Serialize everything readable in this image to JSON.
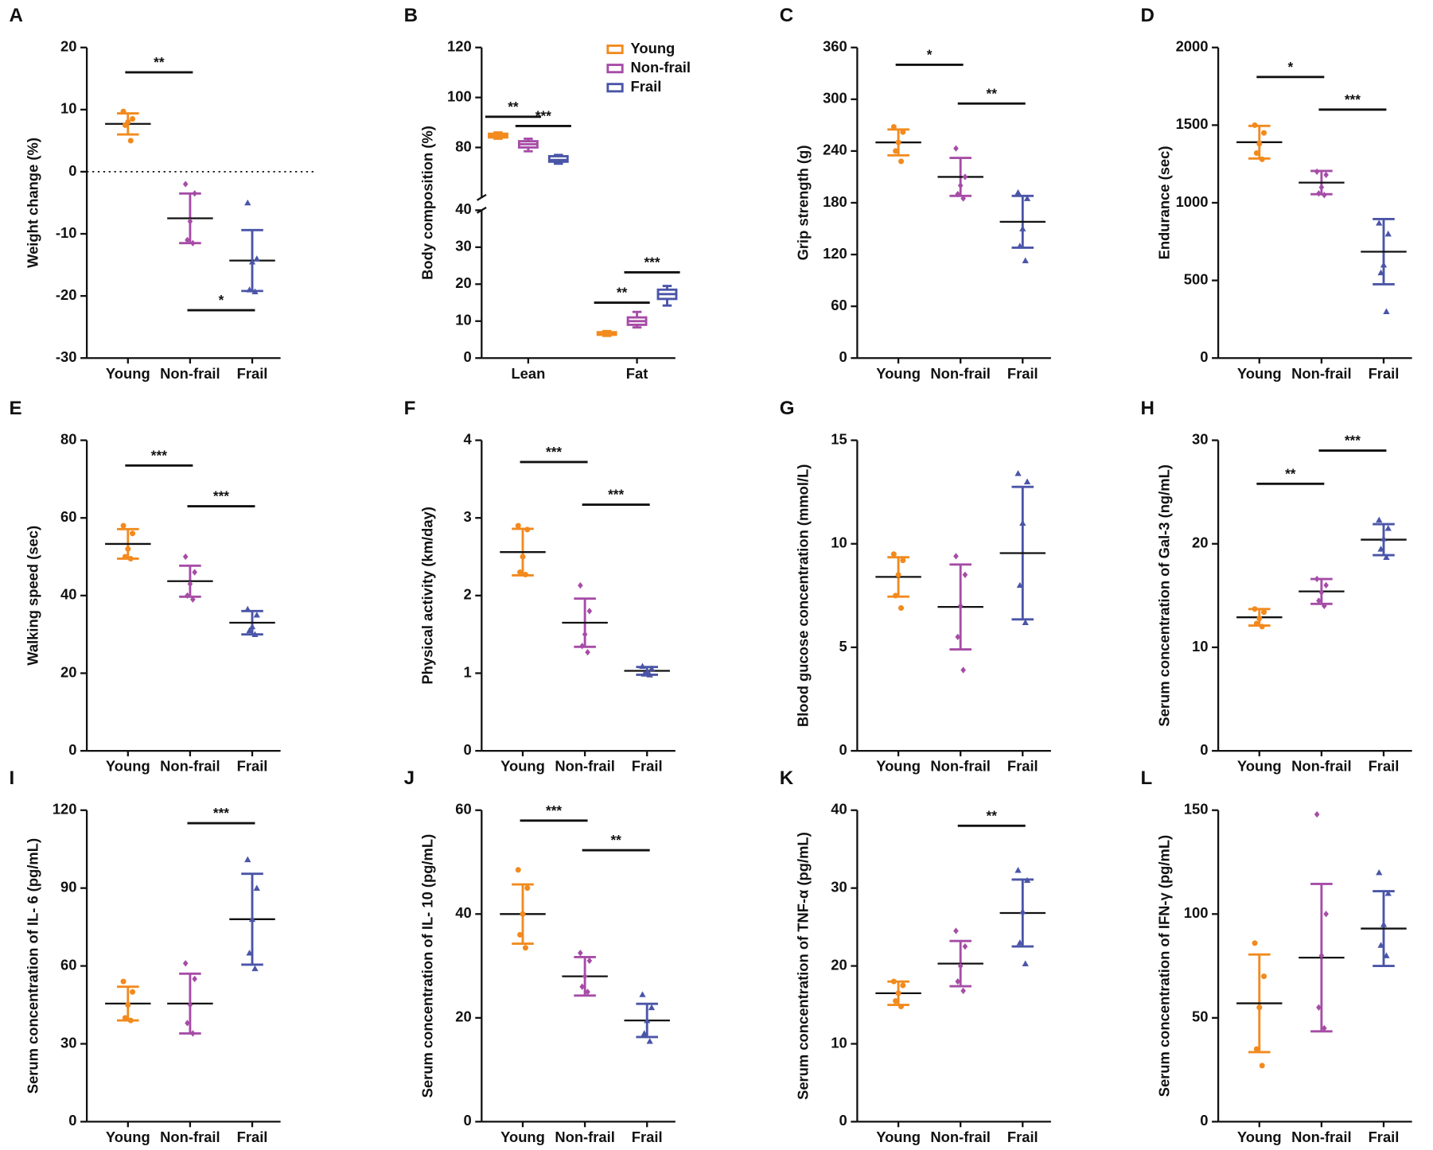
{
  "chart_data": [
    {
      "type": "scatter",
      "panel": "A",
      "y_label": "Weight change (%)",
      "categories": [
        "Young",
        "Non-frail",
        "Frail"
      ],
      "ylim": [
        -30,
        20
      ],
      "yticks": [
        -30,
        -20,
        -10,
        0,
        10,
        20
      ],
      "hline": 0,
      "series": [
        {
          "color": "#f28a1e",
          "marker": "circle",
          "mean": 7.7,
          "sd": 1.7,
          "points": [
            9.7,
            8.5,
            8,
            7.5,
            5
          ]
        },
        {
          "color": "#a64ca6",
          "marker": "diamond",
          "mean": -7.5,
          "sd": 4,
          "points": [
            -2,
            -3.5,
            -8,
            -11,
            -11.5
          ]
        },
        {
          "color": "#4a55a8",
          "marker": "triangle",
          "mean": -14.3,
          "sd": 4.9,
          "points": [
            -5,
            -14,
            -14.5,
            -19,
            -19.3
          ]
        }
      ],
      "significance": [
        {
          "label": "**",
          "from": 0,
          "to": 1,
          "y": 16
        },
        {
          "label": "*",
          "from": 1,
          "to": 2,
          "y": -22.3
        }
      ]
    },
    {
      "type": "box",
      "panel": "B",
      "y_label": "Body composition (%)",
      "categories": [
        "Lean",
        "Fat"
      ],
      "ylim": [
        0,
        120
      ],
      "axis_break": [
        40,
        60
      ],
      "yticks": [
        0,
        10,
        20,
        30,
        40,
        80,
        100,
        120
      ],
      "legend": "upper right",
      "series": [
        {
          "name": "Young",
          "color": "#f28a1e",
          "values": [
            {
              "min": 83.5,
              "q1": 84,
              "median": 84.8,
              "q3": 85.5,
              "max": 86
            },
            {
              "min": 6,
              "q1": 6.3,
              "median": 6.7,
              "q3": 7,
              "max": 7.3
            }
          ]
        },
        {
          "name": "Non-frail",
          "color": "#a64ca6",
          "values": [
            {
              "min": 78.5,
              "q1": 80,
              "median": 81.3,
              "q3": 82.5,
              "max": 83.5
            },
            {
              "min": 8.3,
              "q1": 9,
              "median": 10,
              "q3": 11,
              "max": 12.5
            }
          ]
        },
        {
          "name": "Frail",
          "color": "#4a55a8",
          "values": [
            {
              "min": 73.5,
              "q1": 74.3,
              "median": 75,
              "q3": 76.5,
              "max": 77
            },
            {
              "min": 14.2,
              "q1": 16,
              "median": 17.3,
              "q3": 18.5,
              "max": 19.5
            }
          ]
        }
      ],
      "significance": [
        {
          "label": "**",
          "category": 0,
          "from": 0,
          "to": 1,
          "y": 92.3
        },
        {
          "label": "***",
          "category": 0,
          "from": 1,
          "to": 2,
          "y": 88.6
        },
        {
          "label": "**",
          "category": 1,
          "from": 0,
          "to": 1,
          "y": 15
        },
        {
          "label": "***",
          "category": 1,
          "from": 1,
          "to": 2,
          "y": 23.2
        }
      ]
    },
    {
      "type": "scatter",
      "panel": "C",
      "y_label": "Grip strength (g)",
      "categories": [
        "Young",
        "Non-frail",
        "Frail"
      ],
      "ylim": [
        0,
        360
      ],
      "yticks": [
        0,
        60,
        120,
        180,
        240,
        300,
        360
      ],
      "series": [
        {
          "color": "#f28a1e",
          "marker": "circle",
          "mean": 250,
          "sd": 15,
          "points": [
            268,
            262,
            250,
            240,
            228
          ]
        },
        {
          "color": "#a64ca6",
          "marker": "diamond",
          "mean": 210,
          "sd": 22,
          "points": [
            243,
            210,
            200,
            190,
            185
          ]
        },
        {
          "color": "#4a55a8",
          "marker": "triangle",
          "mean": 158,
          "sd": 30,
          "points": [
            192,
            185,
            150,
            130,
            113
          ]
        }
      ],
      "significance": [
        {
          "label": "*",
          "from": 0,
          "to": 1,
          "y": 340
        },
        {
          "label": "**",
          "from": 1,
          "to": 2,
          "y": 295
        }
      ]
    },
    {
      "type": "scatter",
      "panel": "D",
      "y_label": "Endurance (sec)",
      "categories": [
        "Young",
        "Non-frail",
        "Frail"
      ],
      "ylim": [
        0,
        2000
      ],
      "yticks": [
        0,
        500,
        1000,
        1500,
        2000
      ],
      "series": [
        {
          "color": "#f28a1e",
          "marker": "circle",
          "mean": 1390,
          "sd": 105,
          "points": [
            1500,
            1450,
            1380,
            1320,
            1280
          ]
        },
        {
          "color": "#a64ca6",
          "marker": "diamond",
          "mean": 1130,
          "sd": 75,
          "points": [
            1200,
            1180,
            1100,
            1060,
            1050
          ]
        },
        {
          "color": "#4a55a8",
          "marker": "triangle",
          "mean": 685,
          "sd": 210,
          "points": [
            870,
            800,
            600,
            550,
            300
          ]
        }
      ],
      "significance": [
        {
          "label": "*",
          "from": 0,
          "to": 1,
          "y": 1810
        },
        {
          "label": "***",
          "from": 1,
          "to": 2,
          "y": 1600
        }
      ]
    },
    {
      "type": "scatter",
      "panel": "E",
      "y_label": "Walking speed (sec)",
      "categories": [
        "Young",
        "Non-frail",
        "Frail"
      ],
      "ylim": [
        0,
        80
      ],
      "yticks": [
        0,
        20,
        40,
        60,
        80
      ],
      "series": [
        {
          "color": "#f28a1e",
          "marker": "circle",
          "mean": 53.3,
          "sd": 3.8,
          "points": [
            58,
            56,
            52,
            50,
            49.5
          ]
        },
        {
          "color": "#a64ca6",
          "marker": "diamond",
          "mean": 43.7,
          "sd": 4,
          "points": [
            50,
            46,
            43,
            40,
            39
          ]
        },
        {
          "color": "#4a55a8",
          "marker": "triangle",
          "mean": 33,
          "sd": 3,
          "points": [
            36.5,
            35,
            32,
            31,
            30
          ]
        }
      ],
      "significance": [
        {
          "label": "***",
          "from": 0,
          "to": 1,
          "y": 73.5
        },
        {
          "label": "***",
          "from": 1,
          "to": 2,
          "y": 63
        }
      ]
    },
    {
      "type": "scatter",
      "panel": "F",
      "y_label": "Physical activity (km/day)",
      "categories": [
        "Young",
        "Non-frail",
        "Frail"
      ],
      "ylim": [
        0,
        4
      ],
      "yticks": [
        0,
        1,
        2,
        3,
        4
      ],
      "series": [
        {
          "color": "#f28a1e",
          "marker": "circle",
          "mean": 2.56,
          "sd": 0.3,
          "points": [
            2.9,
            2.85,
            2.5,
            2.3,
            2.27
          ]
        },
        {
          "color": "#a64ca6",
          "marker": "diamond",
          "mean": 1.65,
          "sd": 0.31,
          "points": [
            2.13,
            1.8,
            1.5,
            1.35,
            1.27
          ]
        },
        {
          "color": "#4a55a8",
          "marker": "triangle",
          "mean": 1.03,
          "sd": 0.05,
          "points": [
            1.09,
            1.06,
            1.02,
            0.99,
            0.98
          ]
        }
      ],
      "significance": [
        {
          "label": "***",
          "from": 0,
          "to": 1,
          "y": 3.72
        },
        {
          "label": "***",
          "from": 1,
          "to": 2,
          "y": 3.17
        }
      ]
    },
    {
      "type": "scatter",
      "panel": "G",
      "y_label": "Blood gucose concentration (mmol/L)",
      "categories": [
        "Young",
        "Non-frail",
        "Frail"
      ],
      "ylim": [
        0,
        15
      ],
      "yticks": [
        0,
        5,
        10,
        15
      ],
      "series": [
        {
          "color": "#f28a1e",
          "marker": "circle",
          "mean": 8.4,
          "sd": 0.95,
          "points": [
            9.5,
            9.2,
            8.5,
            7.5,
            6.9
          ]
        },
        {
          "color": "#a64ca6",
          "marker": "diamond",
          "mean": 6.95,
          "sd": 2.05,
          "points": [
            9.4,
            8.5,
            7,
            5.5,
            3.9
          ]
        },
        {
          "color": "#4a55a8",
          "marker": "triangle",
          "mean": 9.55,
          "sd": 3.2,
          "points": [
            13.4,
            13,
            11,
            8,
            6.2
          ]
        }
      ],
      "significance": []
    },
    {
      "type": "scatter",
      "panel": "H",
      "y_label": "Serum concentration of Gal-3 (ng/mL)",
      "categories": [
        "Young",
        "Non-frail",
        "Frail"
      ],
      "ylim": [
        0,
        30
      ],
      "yticks": [
        0,
        10,
        20,
        30
      ],
      "series": [
        {
          "color": "#f28a1e",
          "marker": "circle",
          "mean": 12.9,
          "sd": 0.8,
          "points": [
            13.7,
            13.4,
            12.8,
            12.3,
            12
          ]
        },
        {
          "color": "#a64ca6",
          "marker": "diamond",
          "mean": 15.4,
          "sd": 1.2,
          "points": [
            16.6,
            16,
            15.3,
            14.5,
            14
          ]
        },
        {
          "color": "#4a55a8",
          "marker": "triangle",
          "mean": 20.4,
          "sd": 1.5,
          "points": [
            22.3,
            21.5,
            20.5,
            19.5,
            18.7
          ]
        }
      ],
      "significance": [
        {
          "label": "**",
          "from": 0,
          "to": 1,
          "y": 25.8
        },
        {
          "label": "***",
          "from": 1,
          "to": 2,
          "y": 29
        }
      ]
    },
    {
      "type": "scatter",
      "panel": "I",
      "y_label": "Serum concentration of IL- 6 (pg/mL)",
      "categories": [
        "Young",
        "Non-frail",
        "Frail"
      ],
      "ylim": [
        0,
        120
      ],
      "yticks": [
        0,
        30,
        60,
        90,
        120
      ],
      "series": [
        {
          "color": "#f28a1e",
          "marker": "circle",
          "mean": 45.5,
          "sd": 6.5,
          "points": [
            54,
            50,
            45,
            40,
            39
          ]
        },
        {
          "color": "#a64ca6",
          "marker": "diamond",
          "mean": 45.5,
          "sd": 11.5,
          "points": [
            61,
            55,
            45,
            38,
            34
          ]
        },
        {
          "color": "#4a55a8",
          "marker": "triangle",
          "mean": 78,
          "sd": 17.5,
          "points": [
            101,
            90,
            78,
            65,
            59
          ]
        }
      ],
      "significance": [
        {
          "label": "***",
          "from": 1,
          "to": 2,
          "y": 115
        }
      ]
    },
    {
      "type": "scatter",
      "panel": "J",
      "y_label": "Serum concentration of IL- 10 (pg/mL)",
      "categories": [
        "Young",
        "Non-frail",
        "Frail"
      ],
      "ylim": [
        0,
        60
      ],
      "yticks": [
        0,
        20,
        40,
        60
      ],
      "series": [
        {
          "color": "#f28a1e",
          "marker": "circle",
          "mean": 40,
          "sd": 5.7,
          "points": [
            48.5,
            45,
            40,
            36,
            33.5
          ]
        },
        {
          "color": "#a64ca6",
          "marker": "diamond",
          "mean": 28,
          "sd": 3.7,
          "points": [
            32.5,
            31,
            28,
            26,
            25
          ]
        },
        {
          "color": "#4a55a8",
          "marker": "triangle",
          "mean": 19.5,
          "sd": 3.2,
          "points": [
            24.5,
            22,
            19.5,
            17,
            15.5
          ]
        }
      ],
      "significance": [
        {
          "label": "***",
          "from": 0,
          "to": 1,
          "y": 58
        },
        {
          "label": "**",
          "from": 1,
          "to": 2,
          "y": 52.3
        }
      ]
    },
    {
      "type": "scatter",
      "panel": "K",
      "y_label": "Serum concentration of TNF-α (pg/mL)",
      "categories": [
        "Young",
        "Non-frail",
        "Frail"
      ],
      "ylim": [
        0,
        40
      ],
      "yticks": [
        0,
        10,
        20,
        30,
        40
      ],
      "series": [
        {
          "color": "#f28a1e",
          "marker": "circle",
          "mean": 16.5,
          "sd": 1.5,
          "points": [
            18,
            17.5,
            16.5,
            15.5,
            14.8
          ]
        },
        {
          "color": "#a64ca6",
          "marker": "diamond",
          "mean": 20.3,
          "sd": 2.9,
          "points": [
            24.5,
            22.5,
            20,
            18,
            16.8
          ]
        },
        {
          "color": "#4a55a8",
          "marker": "triangle",
          "mean": 26.8,
          "sd": 4.3,
          "points": [
            32.3,
            31,
            27,
            23,
            20.3
          ]
        }
      ],
      "significance": [
        {
          "label": "**",
          "from": 1,
          "to": 2,
          "y": 38
        }
      ]
    },
    {
      "type": "scatter",
      "panel": "L",
      "y_label": "Serum concentration of IFN-γ (pg/mL)",
      "categories": [
        "Young",
        "Non-frail",
        "Frail"
      ],
      "ylim": [
        0,
        150
      ],
      "yticks": [
        0,
        50,
        100,
        150
      ],
      "series": [
        {
          "color": "#f28a1e",
          "marker": "circle",
          "mean": 57,
          "sd": 23.5,
          "points": [
            86,
            70,
            55,
            35,
            27
          ]
        },
        {
          "color": "#a64ca6",
          "marker": "diamond",
          "mean": 79,
          "sd": 35.5,
          "points": [
            148,
            100,
            80,
            55,
            45
          ]
        },
        {
          "color": "#4a55a8",
          "marker": "triangle",
          "mean": 93,
          "sd": 18,
          "points": [
            120,
            110,
            95,
            85,
            80
          ]
        }
      ],
      "significance": []
    }
  ]
}
